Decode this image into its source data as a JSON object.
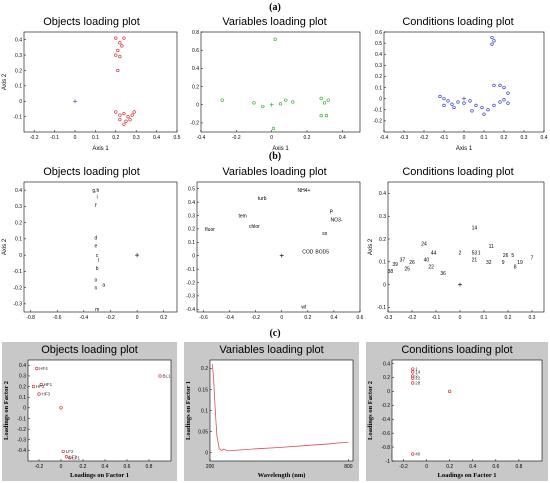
{
  "sections": {
    "a": "(a)",
    "b": "(b)",
    "c": "(c)"
  },
  "chart_data": [
    {
      "id": "a1",
      "type": "scatter",
      "title": "Objects loading plot",
      "xlabel": "Axis 1",
      "ylabel": "Axis 2",
      "xlim": [
        -0.25,
        0.5
      ],
      "ylim": [
        -0.2,
        0.45
      ],
      "xticks": [
        -0.2,
        -0.1,
        0,
        0.1,
        0.2,
        0.3,
        0.4,
        0.5
      ],
      "yticks": [
        -0.1,
        0,
        0.1,
        0.2,
        0.3,
        0.4
      ],
      "color": "#d02020",
      "points": [
        {
          "x": 0.2,
          "y": 0.41
        },
        {
          "x": 0.24,
          "y": 0.41
        },
        {
          "x": 0.22,
          "y": 0.38
        },
        {
          "x": 0.23,
          "y": 0.36
        },
        {
          "x": 0.21,
          "y": 0.33
        },
        {
          "x": 0.2,
          "y": 0.3
        },
        {
          "x": 0.22,
          "y": 0.29
        },
        {
          "x": 0.21,
          "y": 0.2
        },
        {
          "x": 0.2,
          "y": -0.07
        },
        {
          "x": 0.22,
          "y": -0.09
        },
        {
          "x": 0.24,
          "y": -0.08
        },
        {
          "x": 0.26,
          "y": -0.1
        },
        {
          "x": 0.28,
          "y": -0.09
        },
        {
          "x": 0.22,
          "y": -0.12
        },
        {
          "x": 0.25,
          "y": -0.13
        },
        {
          "x": 0.27,
          "y": -0.12
        },
        {
          "x": 0.24,
          "y": -0.15
        },
        {
          "x": 0.29,
          "y": -0.07
        }
      ],
      "origin": [
        0,
        0
      ],
      "origin_color": "#3040c0"
    },
    {
      "id": "a2",
      "type": "scatter",
      "title": "Variables loading plot",
      "xlabel": "Axis 1",
      "ylabel": "",
      "xlim": [
        -0.4,
        0.5
      ],
      "ylim": [
        -0.3,
        0.8
      ],
      "xticks": [
        -0.4,
        -0.2,
        0,
        0.2,
        0.4
      ],
      "yticks": [
        -0.2,
        0,
        0.2,
        0.4,
        0.6,
        0.8
      ],
      "color": "#20b020",
      "points": [
        {
          "x": 0.02,
          "y": 0.72
        },
        {
          "x": -0.28,
          "y": 0.05
        },
        {
          "x": -0.1,
          "y": 0.02
        },
        {
          "x": -0.05,
          "y": -0.02
        },
        {
          "x": 0.05,
          "y": 0.01
        },
        {
          "x": 0.08,
          "y": 0.05
        },
        {
          "x": 0.12,
          "y": 0.03
        },
        {
          "x": 0.28,
          "y": 0.07
        },
        {
          "x": 0.32,
          "y": 0.05
        },
        {
          "x": 0.3,
          "y": 0.02
        },
        {
          "x": 0.28,
          "y": -0.12
        },
        {
          "x": 0.31,
          "y": -0.12
        },
        {
          "x": 0.01,
          "y": -0.26
        }
      ],
      "origin": [
        0,
        0
      ],
      "origin_color": "#20b020"
    },
    {
      "id": "a3",
      "type": "scatter",
      "title": "Conditions loading plot",
      "xlabel": "Axis 1",
      "ylabel": "",
      "xlim": [
        -0.4,
        0.4
      ],
      "ylim": [
        -0.3,
        0.6
      ],
      "xticks": [
        -0.4,
        -0.3,
        -0.2,
        -0.1,
        0,
        0.1,
        0.2,
        0.3,
        0.4
      ],
      "yticks": [
        -0.2,
        -0.1,
        0,
        0.1,
        0.2,
        0.3,
        0.4,
        0.5,
        0.6
      ],
      "color": "#2030c0",
      "points": [
        {
          "x": 0.14,
          "y": 0.55
        },
        {
          "x": 0.15,
          "y": 0.52
        },
        {
          "x": 0.14,
          "y": 0.49
        },
        {
          "x": 0.15,
          "y": 0.12
        },
        {
          "x": 0.18,
          "y": 0.12
        },
        {
          "x": 0.2,
          "y": 0.1
        },
        {
          "x": 0.22,
          "y": 0.05
        },
        {
          "x": -0.12,
          "y": 0.02
        },
        {
          "x": -0.1,
          "y": 0.0
        },
        {
          "x": -0.08,
          "y": -0.02
        },
        {
          "x": -0.06,
          "y": -0.05
        },
        {
          "x": -0.03,
          "y": -0.03
        },
        {
          "x": 0.0,
          "y": -0.04
        },
        {
          "x": 0.03,
          "y": -0.02
        },
        {
          "x": 0.06,
          "y": -0.06
        },
        {
          "x": 0.09,
          "y": -0.08
        },
        {
          "x": 0.12,
          "y": -0.1
        },
        {
          "x": 0.15,
          "y": -0.06
        },
        {
          "x": 0.18,
          "y": -0.03
        },
        {
          "x": 0.2,
          "y": -0.01
        },
        {
          "x": 0.22,
          "y": -0.04
        },
        {
          "x": -0.05,
          "y": -0.08
        },
        {
          "x": 0.1,
          "y": -0.14
        },
        {
          "x": 0.04,
          "y": -0.11
        },
        {
          "x": -0.1,
          "y": -0.06
        }
      ],
      "origin": [
        0,
        0
      ],
      "origin_color": "#2030c0"
    },
    {
      "id": "b1",
      "type": "scatter",
      "title": "Objects loading plot",
      "xlabel": "",
      "ylabel": "Axis 2",
      "xlim": [
        -0.85,
        0.3
      ],
      "ylim": [
        -0.35,
        0.45
      ],
      "xticks": [
        -0.8,
        -0.6,
        -0.4,
        -0.2,
        0,
        0.2
      ],
      "yticks": [
        -0.3,
        -0.2,
        -0.1,
        0,
        0.1,
        0.2,
        0.3,
        0.4
      ],
      "labels": [
        {
          "t": "g,h",
          "x": -0.31,
          "y": 0.4
        },
        {
          "t": "i",
          "x": -0.3,
          "y": 0.36
        },
        {
          "t": "f",
          "x": -0.31,
          "y": 0.31
        },
        {
          "t": "d",
          "x": -0.31,
          "y": 0.11
        },
        {
          "t": "e",
          "x": -0.31,
          "y": 0.06
        },
        {
          "t": "c",
          "x": -0.3,
          "y": 0.0
        },
        {
          "t": "l",
          "x": -0.29,
          "y": -0.03
        },
        {
          "t": "b",
          "x": -0.3,
          "y": -0.08
        },
        {
          "t": "o",
          "x": -0.31,
          "y": -0.15
        },
        {
          "t": "a",
          "x": -0.25,
          "y": -0.18
        },
        {
          "t": "n",
          "x": -0.31,
          "y": -0.2
        },
        {
          "t": "m",
          "x": -0.3,
          "y": -0.33
        }
      ],
      "origin": [
        0,
        0
      ]
    },
    {
      "id": "b2",
      "type": "scatter",
      "title": "Variables loading plot",
      "xlabel": "",
      "ylabel": "",
      "xlim": [
        -0.65,
        0.6
      ],
      "ylim": [
        -0.42,
        0.55
      ],
      "xticks": [
        -0.6,
        -0.4,
        -0.2,
        0,
        0.2,
        0.4,
        0.6
      ],
      "yticks": [
        -0.4,
        -0.3,
        -0.2,
        -0.1,
        0,
        0.1,
        0.2,
        0.3,
        0.4,
        0.5
      ],
      "labels": [
        {
          "t": "NH4+",
          "x": 0.17,
          "y": 0.49
        },
        {
          "t": "turb",
          "x": -0.15,
          "y": 0.43
        },
        {
          "t": "P",
          "x": 0.38,
          "y": 0.33
        },
        {
          "t": "tem",
          "x": -0.3,
          "y": 0.3
        },
        {
          "t": "NO3-",
          "x": 0.42,
          "y": 0.27
        },
        {
          "t": "chlor",
          "x": -0.21,
          "y": 0.22
        },
        {
          "t": "fluor",
          "x": -0.55,
          "y": 0.2
        },
        {
          "t": "ss",
          "x": 0.33,
          "y": 0.17
        },
        {
          "t": "COD",
          "x": 0.2,
          "y": 0.03
        },
        {
          "t": "BOD5",
          "x": 0.31,
          "y": 0.03
        },
        {
          "t": "wt",
          "x": 0.17,
          "y": -0.38
        }
      ],
      "origin": [
        0,
        0
      ]
    },
    {
      "id": "b3",
      "type": "scatter",
      "title": "Conditions loading plot",
      "xlabel": "",
      "ylabel": "Axis 2",
      "xlim": [
        -0.3,
        0.35
      ],
      "ylim": [
        -0.12,
        0.45
      ],
      "xticks": [
        -0.3,
        -0.2,
        -0.1,
        0,
        0.1,
        0.2,
        0.3
      ],
      "yticks": [
        -0.1,
        0,
        0.1,
        0.2,
        0.3,
        0.4
      ],
      "labels": [
        {
          "t": "14",
          "x": 0.06,
          "y": 0.25
        },
        {
          "t": "24",
          "x": -0.15,
          "y": 0.18
        },
        {
          "t": "11",
          "x": 0.13,
          "y": 0.17
        },
        {
          "t": "2",
          "x": 0.0,
          "y": 0.14
        },
        {
          "t": "44",
          "x": -0.11,
          "y": 0.14
        },
        {
          "t": "53",
          "x": 0.06,
          "y": 0.14
        },
        {
          "t": "1",
          "x": 0.08,
          "y": 0.14
        },
        {
          "t": "26",
          "x": 0.19,
          "y": 0.13
        },
        {
          "t": "5",
          "x": 0.22,
          "y": 0.13
        },
        {
          "t": "7",
          "x": 0.3,
          "y": 0.12
        },
        {
          "t": "37",
          "x": -0.24,
          "y": 0.11
        },
        {
          "t": "40",
          "x": -0.14,
          "y": 0.11
        },
        {
          "t": "19",
          "x": 0.25,
          "y": 0.1
        },
        {
          "t": "21",
          "x": 0.06,
          "y": 0.11
        },
        {
          "t": "39",
          "x": -0.27,
          "y": 0.09
        },
        {
          "t": "26",
          "x": -0.2,
          "y": 0.1
        },
        {
          "t": "32",
          "x": 0.12,
          "y": 0.1
        },
        {
          "t": "9",
          "x": 0.18,
          "y": 0.1
        },
        {
          "t": "8",
          "x": 0.23,
          "y": 0.08
        },
        {
          "t": "25",
          "x": -0.22,
          "y": 0.07
        },
        {
          "t": "22",
          "x": -0.12,
          "y": 0.08
        },
        {
          "t": "38",
          "x": -0.29,
          "y": 0.06
        },
        {
          "t": "36",
          "x": -0.07,
          "y": 0.05
        }
      ],
      "origin": [
        0,
        0
      ]
    },
    {
      "id": "c1",
      "type": "scatter",
      "title": "Objects loading plot",
      "xlabel": "Loadings on Factor 1",
      "ylabel": "Loadings on Factor 2",
      "xlim": [
        -0.3,
        1.0
      ],
      "ylim": [
        -0.5,
        0.45
      ],
      "xticks": [
        -0.2,
        0,
        0.2,
        0.4,
        0.6,
        0.8
      ],
      "yticks": [
        -0.4,
        -0.3,
        -0.2,
        -0.1,
        0,
        0.1,
        0.2,
        0.3,
        0.4
      ],
      "points": [
        {
          "t": "HF4",
          "x": -0.22,
          "y": 0.37
        },
        {
          "t": "HF1",
          "x": -0.18,
          "y": 0.22
        },
        {
          "t": "HF2",
          "x": -0.25,
          "y": 0.2
        },
        {
          "t": "HF3",
          "x": -0.2,
          "y": 0.13
        },
        {
          "t": "BL1",
          "x": 0.9,
          "y": 0.3
        },
        {
          "t": "",
          "x": 0.0,
          "y": 0.0
        },
        {
          "t": "LF2",
          "x": 0.02,
          "y": -0.41
        },
        {
          "t": "LF3",
          "x": 0.05,
          "y": -0.46
        },
        {
          "t": "LF1",
          "x": 0.08,
          "y": -0.47
        }
      ],
      "color": "#d02020"
    },
    {
      "id": "c2",
      "type": "line",
      "title": "Variables loading plot",
      "xlabel": "Wavelength (nm)",
      "ylabel": "Loadings on Factor 1",
      "xlim": [
        200,
        820
      ],
      "ylim": [
        -0.02,
        0.22
      ],
      "xticks": [
        200,
        800
      ],
      "yticks": [
        0,
        0.05,
        0.1,
        0.15,
        0.2
      ],
      "color": "#e05050",
      "x": [
        210,
        215,
        220,
        225,
        230,
        240,
        250,
        260,
        270,
        280,
        300,
        350,
        400,
        500,
        600,
        700,
        800
      ],
      "y": [
        0.21,
        0.18,
        0.13,
        0.08,
        0.04,
        0.01,
        0.005,
        0.008,
        0.006,
        0.004,
        0.005,
        0.007,
        0.009,
        0.012,
        0.016,
        0.02,
        0.025
      ]
    },
    {
      "id": "c3",
      "type": "scatter",
      "title": "Conditions loading plot",
      "xlabel": "Loadings on Factor 1",
      "ylabel": "Loadings on Factor 2",
      "xlim": [
        -0.3,
        1.0
      ],
      "ylim": [
        -1.0,
        0.45
      ],
      "xticks": [
        -0.2,
        0,
        0.2,
        0.4,
        0.6,
        0.8
      ],
      "yticks": [
        -1,
        -0.8,
        -0.6,
        -0.4,
        -0.2,
        0,
        0.2,
        0.4
      ],
      "points": [
        {
          "t": "1",
          "x": -0.12,
          "y": 0.32
        },
        {
          "t": "14",
          "x": -0.12,
          "y": 0.28
        },
        {
          "t": "2",
          "x": -0.12,
          "y": 0.22
        },
        {
          "t": "22",
          "x": -0.12,
          "y": 0.19
        },
        {
          "t": "28",
          "x": -0.12,
          "y": 0.12
        },
        {
          "t": "",
          "x": 0.2,
          "y": 0.0
        },
        {
          "t": "40",
          "x": -0.12,
          "y": -0.9
        }
      ],
      "color": "#d02020"
    }
  ]
}
